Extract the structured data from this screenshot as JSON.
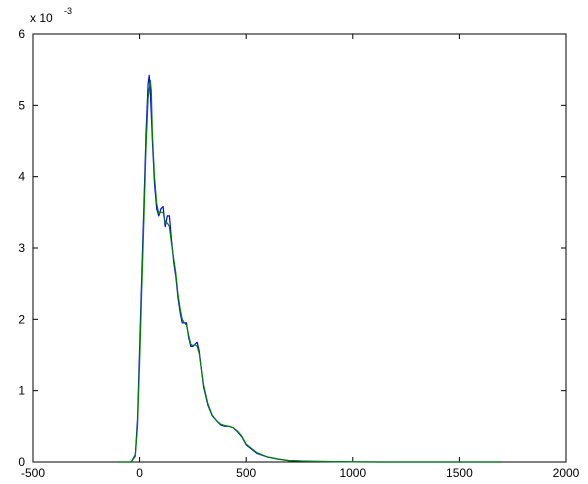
{
  "chart_data": {
    "type": "line",
    "title": "",
    "xlabel": "",
    "ylabel": "",
    "xlim": [
      -500,
      2000
    ],
    "ylim": [
      0,
      6
    ],
    "x_ticks": [
      -500,
      0,
      500,
      1000,
      1500,
      2000
    ],
    "x_tick_labels": [
      "-500",
      "0",
      "500",
      "1000",
      "1500",
      "2000"
    ],
    "y_ticks": [
      0,
      1,
      2,
      3,
      4,
      5,
      6
    ],
    "y_tick_labels": [
      "0",
      "1",
      "2",
      "3",
      "4",
      "5",
      "6"
    ],
    "y_multiplier": {
      "base": "x 10",
      "exponent": "-3"
    },
    "grid": false,
    "legend": "none",
    "series": [
      {
        "color": "#0000ff",
        "x": [
          -100,
          -40,
          -20,
          -10,
          0,
          10,
          20,
          30,
          40,
          45,
          50,
          60,
          70,
          80,
          90,
          100,
          110,
          120,
          130,
          140,
          150,
          160,
          170,
          180,
          190,
          200,
          210,
          220,
          230,
          240,
          250,
          260,
          270,
          280,
          290,
          300,
          320,
          340,
          360,
          380,
          400,
          420,
          440,
          460,
          480,
          500,
          550,
          600,
          650,
          700,
          800,
          900,
          1000,
          1200,
          1500,
          1700
        ],
        "y": [
          0,
          0,
          0.1,
          0.6,
          1.6,
          2.6,
          3.6,
          4.6,
          5.3,
          5.42,
          5.2,
          4.5,
          3.9,
          3.55,
          3.45,
          3.55,
          3.58,
          3.3,
          3.45,
          3.45,
          3.1,
          2.8,
          2.6,
          2.3,
          2.1,
          1.95,
          1.95,
          1.95,
          1.75,
          1.62,
          1.62,
          1.65,
          1.68,
          1.55,
          1.3,
          1.05,
          0.8,
          0.65,
          0.58,
          0.52,
          0.5,
          0.5,
          0.48,
          0.42,
          0.35,
          0.24,
          0.12,
          0.07,
          0.04,
          0.02,
          0.01,
          0.005,
          0.002,
          0,
          0,
          0
        ]
      },
      {
        "color": "#008000",
        "x": [
          -100,
          -40,
          -20,
          -10,
          0,
          10,
          20,
          30,
          40,
          50,
          55,
          60,
          70,
          80,
          90,
          100,
          110,
          120,
          130,
          140,
          150,
          160,
          170,
          180,
          190,
          200,
          210,
          220,
          230,
          240,
          250,
          260,
          270,
          280,
          290,
          300,
          320,
          340,
          360,
          380,
          400,
          420,
          440,
          460,
          480,
          500,
          550,
          600,
          650,
          700,
          800,
          900,
          1000,
          1200,
          1500,
          1700
        ],
        "y": [
          0,
          0,
          0.08,
          0.5,
          1.4,
          2.4,
          3.4,
          4.4,
          5.1,
          5.35,
          5.2,
          4.6,
          4.0,
          3.62,
          3.48,
          3.5,
          3.5,
          3.35,
          3.35,
          3.3,
          3.05,
          2.85,
          2.65,
          2.35,
          2.15,
          2.0,
          1.95,
          1.92,
          1.78,
          1.65,
          1.63,
          1.65,
          1.62,
          1.52,
          1.3,
          1.08,
          0.82,
          0.66,
          0.58,
          0.53,
          0.51,
          0.5,
          0.48,
          0.43,
          0.36,
          0.25,
          0.13,
          0.07,
          0.04,
          0.02,
          0.01,
          0.005,
          0.002,
          0,
          0,
          0
        ]
      }
    ]
  }
}
